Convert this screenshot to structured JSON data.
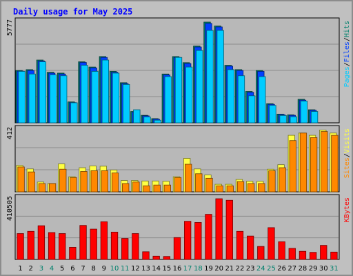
{
  "title": "Daily usage for May 2025",
  "colors": {
    "background": "#c0c0c0",
    "plot_bg": "#b8b8b8",
    "title": "#0000ff",
    "hits": "#00806c",
    "files": "#0040ff",
    "pages": "#00ccff",
    "visits": "#ffff44",
    "sites": "#ff8800",
    "kbytes": "#ff0000",
    "weekend_day": "#00806c",
    "weekday": "#000000"
  },
  "chart_data": {
    "type": "bar",
    "categories": [
      "1",
      "2",
      "3",
      "4",
      "5",
      "6",
      "7",
      "8",
      "9",
      "10",
      "11",
      "12",
      "13",
      "14",
      "15",
      "16",
      "17",
      "18",
      "19",
      "20",
      "21",
      "22",
      "23",
      "24",
      "25",
      "26",
      "27",
      "28",
      "29",
      "30",
      "31"
    ],
    "weekend_days": [
      "3",
      "4",
      "10",
      "11",
      "17",
      "18",
      "24",
      "25",
      "31"
    ],
    "panels": [
      {
        "id": "hits-files-pages",
        "axis_max_label": "5777",
        "axis_max": 5777,
        "legend": [
          {
            "label": "Pages",
            "color_key": "pages"
          },
          {
            "label": "/",
            "color_key": "weekday"
          },
          {
            "label": "Files",
            "color_key": "files"
          },
          {
            "label": "/",
            "color_key": "weekday"
          },
          {
            "label": "Hits",
            "color_key": "hits"
          }
        ],
        "series": [
          {
            "name": "Hits",
            "color_key": "hits",
            "values": [
              3000,
              3050,
              3600,
              2900,
              2850,
              1200,
              3500,
              3200,
              3800,
              2950,
              2300,
              650,
              430,
              240,
              2800,
              3800,
              3450,
              4400,
              5777,
              5550,
              3300,
              3050,
              1800,
              3000,
              1100,
              500,
              460,
              1350,
              750,
              0,
              0
            ]
          },
          {
            "name": "Files",
            "color_key": "files",
            "values": [
              2960,
              3000,
              3550,
              2850,
              2800,
              1160,
              3460,
              3150,
              3750,
              2900,
              2250,
              620,
              400,
              210,
              2750,
              3750,
              3400,
              4350,
              5700,
              5500,
              3250,
              3000,
              1750,
              2950,
              1060,
              470,
              430,
              1300,
              720,
              0,
              0
            ]
          },
          {
            "name": "Pages",
            "color_key": "pages",
            "values": [
              2950,
              2800,
              3500,
              2750,
              2700,
              1150,
              3300,
              2950,
              3600,
              2850,
              2200,
              750,
              340,
              150,
              2650,
              3750,
              3200,
              4150,
              5300,
              5300,
              3050,
              2700,
              1550,
              2650,
              1000,
              420,
              350,
              1250,
              650,
              0,
              0
            ]
          }
        ]
      },
      {
        "id": "visits-sites",
        "axis_max_label": "412",
        "axis_max": 412,
        "legend": [
          {
            "label": "Sites",
            "color_key": "sites"
          },
          {
            "label": "/",
            "color_key": "weekday"
          },
          {
            "label": "Visits",
            "color_key": "visits"
          }
        ],
        "series": [
          {
            "name": "Visits",
            "color_key": "visits",
            "values": [
              175,
              152,
              65,
              55,
              185,
              100,
              160,
              172,
              170,
              145,
              75,
              75,
              72,
              72,
              70,
              100,
              222,
              152,
              112,
              50,
              50,
              82,
              70,
              70,
              150,
              180,
              375,
              390,
              375,
              410,
              390
            ]
          },
          {
            "name": "Sites",
            "color_key": "sites",
            "values": [
              165,
              132,
              55,
              55,
              150,
              95,
              135,
              140,
              140,
              125,
              55,
              65,
              40,
              45,
              45,
              95,
              183,
              120,
              90,
              40,
              40,
              68,
              55,
              55,
              140,
              160,
              340,
              390,
              360,
              400,
              375
            ]
          }
        ]
      },
      {
        "id": "kbytes",
        "axis_max_label": "410505",
        "axis_max": 410505,
        "legend": [
          {
            "label": "KBytes",
            "color_key": "kbytes"
          }
        ],
        "series": [
          {
            "name": "KBytes",
            "color_key": "kbytes",
            "values": [
              175000,
              190000,
              228000,
              182000,
              175000,
              82000,
              230000,
              205000,
              255000,
              185000,
              142000,
              175000,
              52000,
              22000,
              20000,
              148000,
              258000,
              250000,
              305000,
              410505,
              400000,
              190000,
              158000,
              88000,
              215000,
              120000,
              75000,
              55000,
              48000,
              95000,
              50000
            ]
          }
        ]
      }
    ]
  }
}
